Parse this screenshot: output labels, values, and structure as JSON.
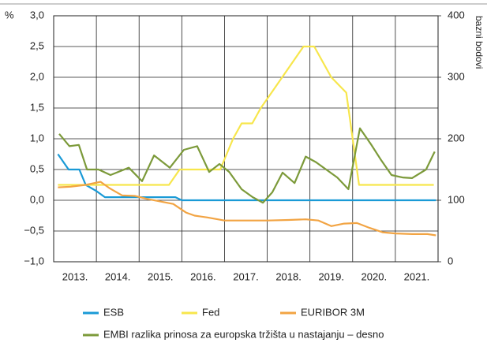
{
  "chart_data": {
    "type": "line",
    "ylabel": "%",
    "y2label": "bazni bodovi",
    "xlim": [
      2013,
      2022
    ],
    "xticks": [
      {
        "value": 2013,
        "label": "2013."
      },
      {
        "value": 2014,
        "label": "2014."
      },
      {
        "value": 2015,
        "label": "2015."
      },
      {
        "value": 2016,
        "label": "2016."
      },
      {
        "value": 2017,
        "label": "2017."
      },
      {
        "value": 2018,
        "label": "2018."
      },
      {
        "value": 2019,
        "label": "2019."
      },
      {
        "value": 2020,
        "label": "2020."
      },
      {
        "value": 2021,
        "label": "2021."
      }
    ],
    "ylim": [
      -1,
      3
    ],
    "yticks": [
      {
        "value": -1,
        "label": "−1,0"
      },
      {
        "value": -0.5,
        "label": "−0,5"
      },
      {
        "value": 0,
        "label": "0,0"
      },
      {
        "value": 0.5,
        "label": "0,5"
      },
      {
        "value": 1,
        "label": "1,0"
      },
      {
        "value": 1.5,
        "label": "1,5"
      },
      {
        "value": 2,
        "label": "2,0"
      },
      {
        "value": 2.5,
        "label": "2,5"
      },
      {
        "value": 3,
        "label": "3,0"
      }
    ],
    "y2lim": [
      0,
      400
    ],
    "y2ticks": [
      0,
      100,
      200,
      300,
      400
    ],
    "grid": true,
    "series": [
      {
        "name": "ESB",
        "color": "#1a9ad6",
        "x": [
          2013.1,
          2013.35,
          2013.6,
          2013.75,
          2014.0,
          2014.2,
          2015.85,
          2016.0,
          2021.95
        ],
        "values": [
          0.75,
          0.5,
          0.5,
          0.25,
          0.15,
          0.05,
          0.05,
          0.0,
          0.0
        ]
      },
      {
        "name": "Fed",
        "color": "#f7e64c",
        "x": [
          2013.1,
          2015.7,
          2015.95,
          2016.9,
          2017.2,
          2017.4,
          2017.65,
          2017.85,
          2018.1,
          2018.35,
          2018.6,
          2018.85,
          2019.1,
          2019.3,
          2019.5,
          2019.85,
          2020.15,
          2021.9
        ],
        "values": [
          0.25,
          0.25,
          0.5,
          0.5,
          1.0,
          1.25,
          1.25,
          1.5,
          1.75,
          2.0,
          2.25,
          2.5,
          2.5,
          2.25,
          2.0,
          1.75,
          0.25,
          0.25
        ]
      },
      {
        "name": "EURIBOR 3M",
        "color": "#f2a443",
        "x": [
          2013.1,
          2013.4,
          2013.75,
          2014.1,
          2014.3,
          2014.6,
          2014.9,
          2015.2,
          2015.5,
          2015.8,
          2016.1,
          2016.3,
          2016.6,
          2017.0,
          2017.5,
          2018.0,
          2018.5,
          2018.9,
          2019.2,
          2019.5,
          2019.8,
          2020.1,
          2020.4,
          2020.7,
          2021.0,
          2021.4,
          2021.75,
          2021.95
        ],
        "values": [
          0.21,
          0.22,
          0.25,
          0.3,
          0.2,
          0.08,
          0.07,
          0.02,
          -0.02,
          -0.06,
          -0.2,
          -0.25,
          -0.28,
          -0.33,
          -0.33,
          -0.33,
          -0.32,
          -0.31,
          -0.33,
          -0.42,
          -0.38,
          -0.37,
          -0.45,
          -0.52,
          -0.54,
          -0.55,
          -0.55,
          -0.57
        ]
      },
      {
        "name": "EMBI razlika prinosa za europska tržišta u nastajanju – desno",
        "color": "#7c9a3a",
        "axis": "y2",
        "x": [
          2013.13,
          2013.37,
          2013.59,
          2013.78,
          2014.05,
          2014.33,
          2014.76,
          2015.07,
          2015.35,
          2015.72,
          2016.05,
          2016.36,
          2016.64,
          2016.88,
          2017.11,
          2017.4,
          2017.66,
          2017.9,
          2018.12,
          2018.36,
          2018.64,
          2018.9,
          2019.14,
          2019.38,
          2019.64,
          2019.9,
          2020.17,
          2020.43,
          2020.67,
          2020.91,
          2021.17,
          2021.39,
          2021.72,
          2021.92
        ],
        "values": [
          208,
          188,
          190,
          150,
          150,
          141,
          153,
          131,
          173,
          153,
          182,
          188,
          146,
          159,
          146,
          118,
          105,
          96,
          113,
          145,
          128,
          171,
          162,
          150,
          137,
          118,
          217,
          191,
          165,
          141,
          137,
          136,
          150,
          179
        ]
      }
    ]
  }
}
